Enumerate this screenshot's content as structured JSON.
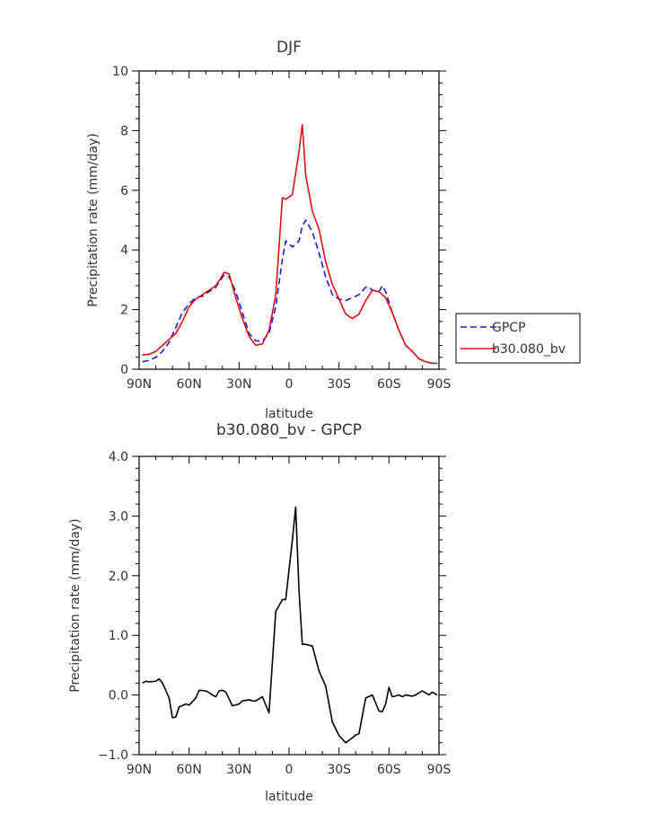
{
  "chart_data": [
    {
      "type": "line",
      "title": "DJF",
      "xlabel": "latitude",
      "ylabel": "Precipitation rate (mm/day)",
      "xlim": [
        90,
        -90
      ],
      "ylim": [
        0,
        10
      ],
      "x_ticks": [
        90,
        60,
        30,
        0,
        -30,
        -60,
        -90
      ],
      "x_tick_labels": [
        "90N",
        "60N",
        "30N",
        "0",
        "30S",
        "60S",
        "90S"
      ],
      "y_ticks": [
        0,
        2,
        4,
        6,
        8,
        10
      ],
      "y_tick_labels": [
        "0",
        "2",
        "4",
        "6",
        "8",
        "10"
      ],
      "grid": false,
      "legend_position": "right, outside plot",
      "series": [
        {
          "name": "GPCP",
          "color": "#1a1adb",
          "style": "dashed",
          "x": [
            88,
            84,
            80,
            76,
            72,
            68,
            64,
            60,
            56,
            52,
            48,
            44,
            41,
            39,
            36,
            32,
            28,
            24,
            20,
            16,
            12,
            8,
            4,
            2,
            -2,
            -6,
            -8,
            -10,
            -14,
            -18,
            -22,
            -26,
            -30,
            -34,
            -38,
            -42,
            -46,
            -48,
            -50,
            -54,
            -56,
            -58,
            -62,
            -66,
            -70,
            -74,
            -78,
            -82,
            -86,
            -89
          ],
          "y": [
            0.25,
            0.3,
            0.4,
            0.6,
            0.9,
            1.4,
            1.9,
            2.2,
            2.4,
            2.45,
            2.6,
            2.75,
            3.0,
            3.15,
            3.1,
            2.6,
            1.9,
            1.2,
            0.95,
            0.95,
            1.2,
            2.1,
            3.7,
            4.3,
            4.1,
            4.3,
            4.8,
            5.0,
            4.6,
            3.9,
            3.1,
            2.5,
            2.35,
            2.3,
            2.4,
            2.5,
            2.75,
            2.75,
            2.65,
            2.6,
            2.8,
            2.6,
            1.9,
            1.3,
            0.8,
            0.6,
            0.35,
            0.25,
            0.2,
            0.2
          ]
        },
        {
          "name": "b30.080_bv",
          "color": "#e01010",
          "style": "solid",
          "x": [
            88,
            84,
            80,
            76,
            72,
            68,
            64,
            60,
            56,
            52,
            48,
            44,
            41,
            39,
            36,
            32,
            28,
            24,
            20,
            16,
            12,
            8,
            4,
            2,
            -2,
            -6,
            -8,
            -10,
            -14,
            -18,
            -22,
            -26,
            -30,
            -34,
            -38,
            -42,
            -46,
            -50,
            -54,
            -58,
            -62,
            -66,
            -70,
            -74,
            -78,
            -82,
            -86,
            -89
          ],
          "y": [
            0.48,
            0.5,
            0.6,
            0.8,
            1.0,
            1.2,
            1.6,
            2.1,
            2.35,
            2.5,
            2.65,
            2.8,
            3.05,
            3.25,
            3.2,
            2.4,
            1.7,
            1.1,
            0.8,
            0.85,
            1.3,
            2.5,
            5.75,
            5.7,
            5.85,
            7.3,
            8.2,
            6.5,
            5.3,
            4.7,
            3.6,
            2.85,
            2.35,
            1.85,
            1.7,
            1.85,
            2.3,
            2.65,
            2.6,
            2.4,
            1.9,
            1.3,
            0.8,
            0.6,
            0.35,
            0.25,
            0.2,
            0.2
          ]
        }
      ]
    },
    {
      "type": "line",
      "title": "b30.080_bv - GPCP",
      "xlabel": "latitude",
      "ylabel": "Precipitation rate (mm/day)",
      "xlim": [
        90,
        -90
      ],
      "ylim": [
        -1.0,
        4.0
      ],
      "x_ticks": [
        90,
        60,
        30,
        0,
        -30,
        -60,
        -90
      ],
      "x_tick_labels": [
        "90N",
        "60N",
        "30N",
        "0",
        "30S",
        "60S",
        "90S"
      ],
      "y_ticks": [
        -1.0,
        0.0,
        1.0,
        2.0,
        3.0,
        4.0
      ],
      "y_tick_labels": [
        "−1.0",
        "0.0",
        "1.0",
        "2.0",
        "3.0",
        "4.0"
      ],
      "grid": false,
      "series": [
        {
          "color": "#000000",
          "style": "solid",
          "x": [
            88,
            86,
            84,
            80,
            78,
            76,
            72,
            70,
            68,
            66,
            62,
            60,
            56,
            54,
            50,
            48,
            46,
            44,
            42,
            40,
            38,
            34,
            30,
            28,
            24,
            22,
            20,
            16,
            12,
            8,
            4,
            2,
            -2,
            -4,
            -6,
            -8,
            -10,
            -14,
            -18,
            -22,
            -26,
            -30,
            -34,
            -38,
            -40,
            -42,
            -46,
            -50,
            -54,
            -56,
            -58,
            -60,
            -62,
            -66,
            -68,
            -70,
            -74,
            -76,
            -80,
            -84,
            -86,
            -89
          ],
          "y": [
            0.2,
            0.23,
            0.22,
            0.23,
            0.27,
            0.2,
            -0.05,
            -0.38,
            -0.37,
            -0.2,
            -0.15,
            -0.17,
            -0.05,
            0.08,
            0.07,
            0.04,
            0.0,
            -0.03,
            0.07,
            0.08,
            0.05,
            -0.18,
            -0.15,
            -0.1,
            -0.08,
            -0.1,
            -0.1,
            -0.03,
            -0.3,
            1.4,
            1.6,
            1.6,
            2.6,
            3.15,
            1.75,
            0.85,
            0.85,
            0.82,
            0.4,
            0.15,
            -0.45,
            -0.68,
            -0.8,
            -0.72,
            -0.67,
            -0.65,
            -0.05,
            0.0,
            -0.27,
            -0.28,
            -0.15,
            0.13,
            -0.03,
            0.0,
            -0.03,
            0.0,
            -0.02,
            0.0,
            0.07,
            0.0,
            0.05,
            0.0
          ]
        }
      ]
    }
  ]
}
